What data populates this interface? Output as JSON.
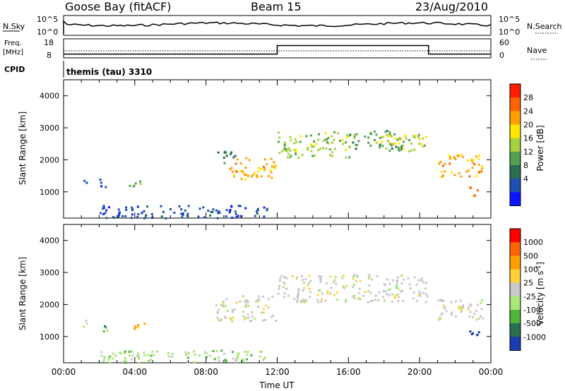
{
  "header": {
    "station": "Goose Bay (fitACF)",
    "beam": "Beam 15",
    "date": "23/Aug/2010"
  },
  "noise_panel": {
    "left_label": "N.Sky",
    "left_ticks": [
      "10^5",
      "10^0"
    ],
    "right_ticks": [
      "10^5",
      "10^0"
    ],
    "right_label": "N.Search"
  },
  "freq_panel": {
    "left_label_1": "Freq.",
    "left_label_2": "[MHz]",
    "left_ticks": [
      "18",
      "8"
    ],
    "right_ticks": [
      "60",
      "0"
    ],
    "right_label": "Nave",
    "freq_steps": [
      {
        "from": 0.0,
        "to": 12.0,
        "mhz": 10.0
      },
      {
        "from": 12.0,
        "to": 20.5,
        "mhz": 14.5
      },
      {
        "from": 20.5,
        "to": 24.0,
        "mhz": 10.0
      }
    ]
  },
  "cpid": {
    "label": "CPID",
    "value": "themis (tau) 3310"
  },
  "chart_data": [
    {
      "type": "heatmap",
      "name": "power",
      "xlabel": "Time UT",
      "ylabel": "Slant Range [km]",
      "xlim": [
        0,
        24
      ],
      "ylim": [
        180,
        4500
      ],
      "x_tick_labels": [
        "00:00",
        "04:00",
        "08:00",
        "12:00",
        "16:00",
        "20:00",
        "00:00"
      ],
      "y_ticks": [
        1000,
        2000,
        3000,
        4000
      ],
      "colorbar": {
        "label": "Power [dB]",
        "ticks": [
          "28",
          "24",
          "20",
          "16",
          "12",
          "8",
          "4"
        ],
        "colors": [
          "#0a14ff",
          "#1e50b4",
          "#286e50",
          "#50a050",
          "#a5d23c",
          "#ffe600",
          "#ffa000",
          "#ff6400",
          "#ff1e00"
        ]
      },
      "patches": [
        {
          "t0": 1.0,
          "t1": 1.5,
          "r0": 1300,
          "r1": 1550,
          "color": "#1e50b4"
        },
        {
          "t0": 2.0,
          "t1": 2.5,
          "r0": 1150,
          "r1": 1500,
          "color": "#1e50b4"
        },
        {
          "t0": 3.6,
          "t1": 4.5,
          "r0": 1200,
          "r1": 1450,
          "color": "#50a050"
        },
        {
          "t0": 8.5,
          "t1": 9.6,
          "r0": 1900,
          "r1": 2300,
          "color": "#286e50"
        },
        {
          "t0": 9.3,
          "t1": 11.9,
          "r0": 1400,
          "r1": 2100,
          "color": "#ffa000"
        },
        {
          "t0": 12.0,
          "t1": 16.0,
          "r0": 2100,
          "r1": 2900,
          "color": "#a5d23c"
        },
        {
          "t0": 16.0,
          "t1": 19.0,
          "r0": 2300,
          "r1": 2950,
          "color": "#50a050"
        },
        {
          "t0": 17.5,
          "t1": 18.9,
          "r0": 2500,
          "r1": 2900,
          "color": "#ffe600"
        },
        {
          "t0": 19.0,
          "t1": 20.4,
          "r0": 2200,
          "r1": 2850,
          "color": "#a5d23c"
        },
        {
          "t0": 21.0,
          "t1": 23.5,
          "r0": 1500,
          "r1": 2200,
          "color": "#ffa000"
        },
        {
          "t0": 22.7,
          "t1": 23.3,
          "r0": 900,
          "r1": 1200,
          "color": "#ff6400"
        },
        {
          "t0": 2.0,
          "t1": 11.5,
          "r0": 200,
          "r1": 600,
          "color": "#1e50b4"
        }
      ]
    },
    {
      "type": "heatmap",
      "name": "velocity",
      "xlabel": "Time UT",
      "ylabel": "Slant Range [km]",
      "xlim": [
        0,
        24
      ],
      "ylim": [
        180,
        4500
      ],
      "x_tick_labels": [
        "00:00",
        "04:00",
        "08:00",
        "12:00",
        "16:00",
        "20:00",
        "00:00"
      ],
      "y_ticks": [
        1000,
        2000,
        3000,
        4000
      ],
      "colorbar": {
        "label": "Velocity [m s^-1]",
        "ticks": [
          "1000",
          "500",
          "100",
          "25",
          "-25",
          "-100",
          "-500",
          "-1000"
        ],
        "colors": [
          "#1a3cb4",
          "#286e50",
          "#50b43c",
          "#aae678",
          "#c8c8c8",
          "#ffd23c",
          "#ffa000",
          "#ff6400",
          "#ff0000"
        ]
      },
      "patches": [
        {
          "t0": 1.0,
          "t1": 1.5,
          "r0": 1300,
          "r1": 1550,
          "color": "#c8c8c8"
        },
        {
          "t0": 2.0,
          "t1": 2.5,
          "r0": 1150,
          "r1": 1500,
          "color": "#50b43c"
        },
        {
          "t0": 3.6,
          "t1": 4.5,
          "r0": 1200,
          "r1": 1450,
          "color": "#ffa000"
        },
        {
          "t0": 8.5,
          "t1": 11.9,
          "r0": 1500,
          "r1": 2300,
          "color": "#c8c8c8"
        },
        {
          "t0": 12.0,
          "t1": 20.4,
          "r0": 2100,
          "r1": 2950,
          "color": "#c8c8c8"
        },
        {
          "t0": 21.0,
          "t1": 23.5,
          "r0": 1500,
          "r1": 2200,
          "color": "#c8c8c8"
        },
        {
          "t0": 22.7,
          "t1": 23.3,
          "r0": 900,
          "r1": 1300,
          "color": "#1a3cb4"
        },
        {
          "t0": 2.0,
          "t1": 11.5,
          "r0": 200,
          "r1": 600,
          "color": "#aae678"
        }
      ]
    }
  ]
}
